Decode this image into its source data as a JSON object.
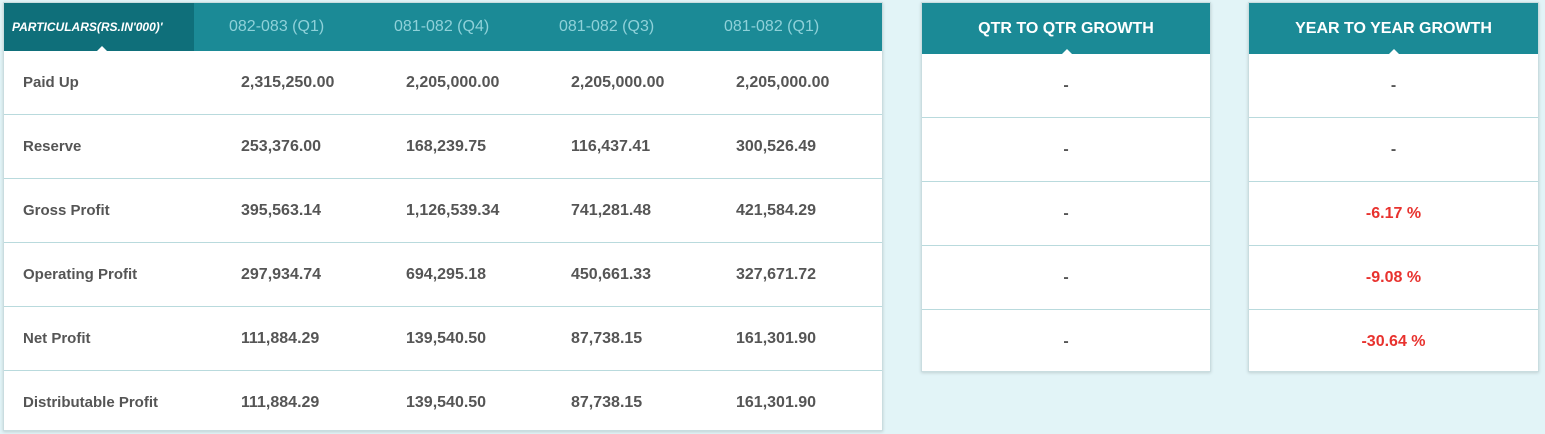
{
  "main_table": {
    "headers": [
      "PARTICULARS(RS.IN'000)'",
      "082-083 (Q1)",
      "081-082 (Q4)",
      "081-082 (Q3)",
      "081-082 (Q1)"
    ],
    "rows": [
      {
        "label": "Paid Up",
        "values": [
          "2,315,250.00",
          "2,205,000.00",
          "2,205,000.00",
          "2,205,000.00"
        ]
      },
      {
        "label": "Reserve",
        "values": [
          "253,376.00",
          "168,239.75",
          "116,437.41",
          "300,526.49"
        ]
      },
      {
        "label": "Gross Profit",
        "values": [
          "395,563.14",
          "1,126,539.34",
          "741,281.48",
          "421,584.29"
        ]
      },
      {
        "label": "Operating Profit",
        "values": [
          "297,934.74",
          "694,295.18",
          "450,661.33",
          "327,671.72"
        ]
      },
      {
        "label": "Net Profit",
        "values": [
          "111,884.29",
          "139,540.50",
          "87,738.15",
          "161,301.90"
        ]
      },
      {
        "label": "Distributable Profit",
        "values": [
          "111,884.29",
          "139,540.50",
          "87,738.15",
          "161,301.90"
        ]
      }
    ]
  },
  "qtr_growth": {
    "title": "QTR TO QTR GROWTH",
    "values": [
      "-",
      "-",
      "-",
      "-",
      "-"
    ]
  },
  "yoy_growth": {
    "title": "YEAR TO YEAR GROWTH",
    "values": [
      "-",
      "-",
      "-6.17 %",
      "-9.08 %",
      "-30.64 %"
    ]
  },
  "colors": {
    "header_bg": "#1b8a96",
    "header_first_bg": "#0f6f7a",
    "negative": "#e8322e",
    "page_bg": "#e2f4f7"
  }
}
